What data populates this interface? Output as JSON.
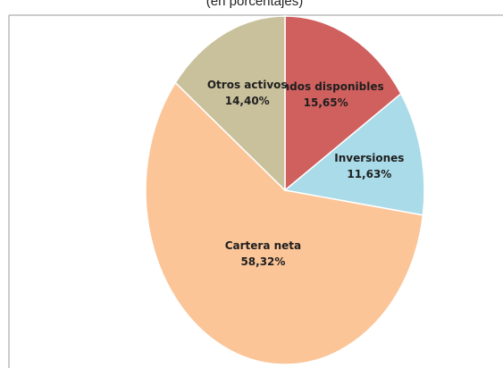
{
  "chart_data": {
    "type": "pie",
    "subtitle": "(en porcentajes)",
    "categories": [
      "Fondos disponibles",
      "Inversiones",
      "Cartera neta",
      "Otros activos"
    ],
    "values": [
      15.65,
      11.63,
      58.32,
      14.4
    ],
    "value_labels": [
      "15,65%",
      "11,63%",
      "58,32%",
      "14,40%"
    ],
    "colors": [
      "#d0605e",
      "#a9dbe8",
      "#fbc598",
      "#c9c19c"
    ]
  }
}
